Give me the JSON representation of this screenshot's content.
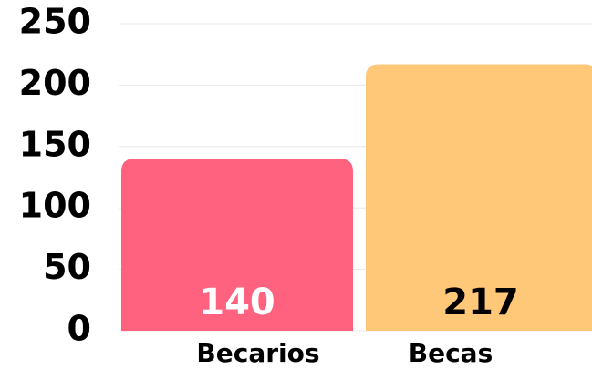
{
  "chart_data": {
    "type": "bar",
    "categories": [
      "Becarios",
      "Becas"
    ],
    "values": [
      140,
      217
    ],
    "colors": [
      "#ff627e",
      "#ffc778"
    ],
    "label_colors": [
      "#ffffff",
      "#000000"
    ],
    "ylim": [
      0,
      250
    ],
    "yticks": [
      0,
      50,
      100,
      150,
      200,
      250
    ],
    "grid": true
  }
}
